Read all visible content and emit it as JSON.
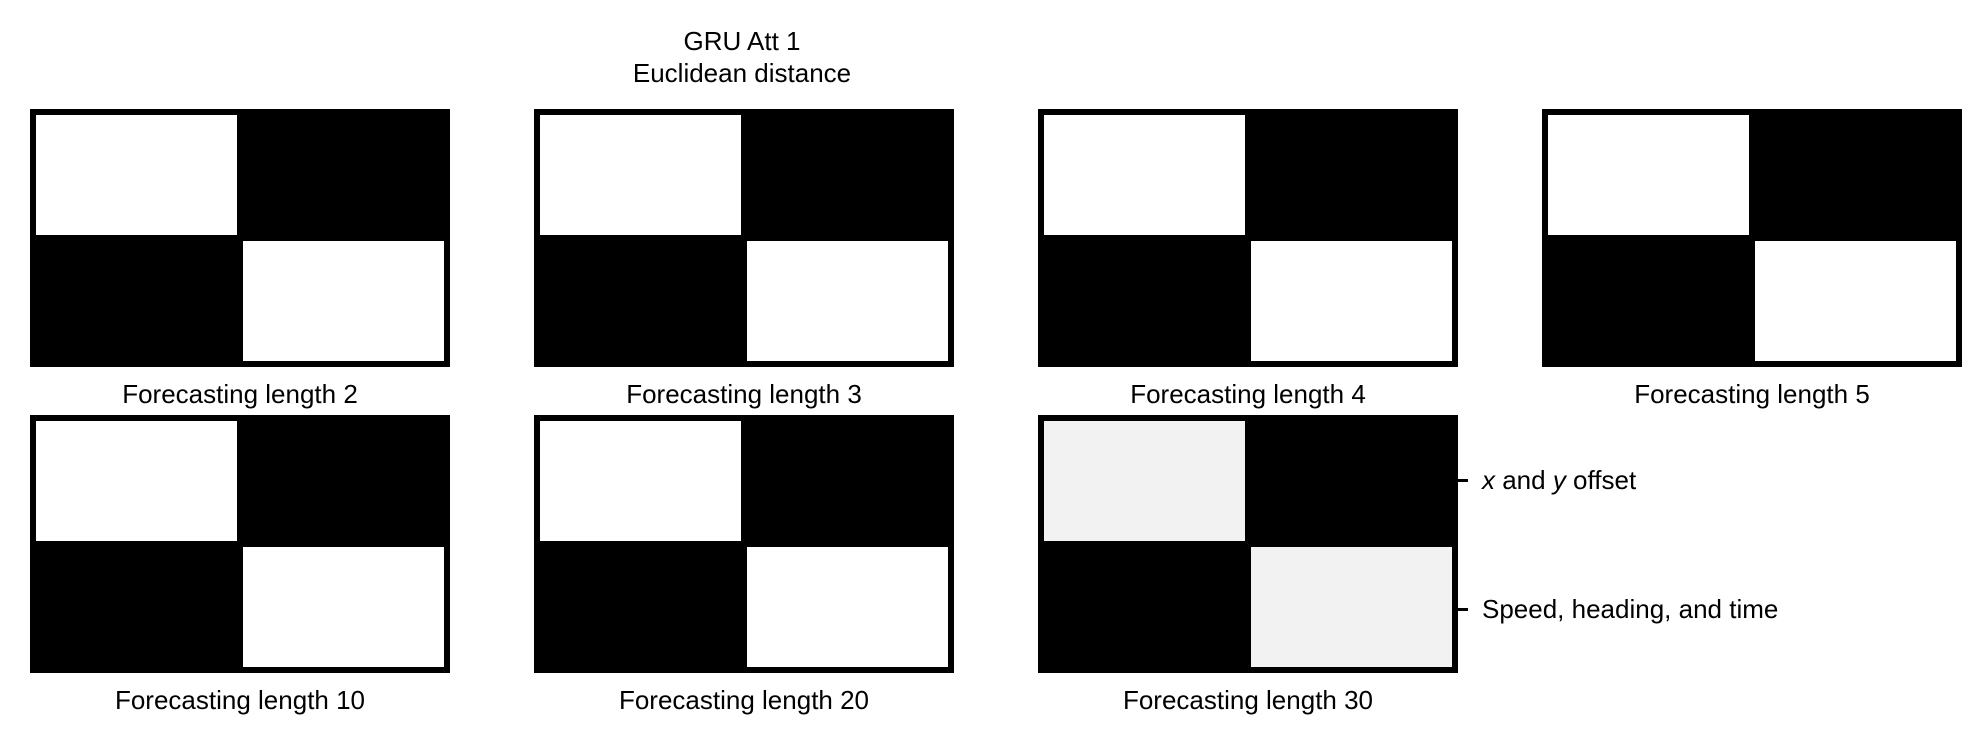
{
  "chart_data": {
    "type": "heatmap",
    "title_lines": [
      "GRU Att 1",
      "Euclidean distance"
    ],
    "colormap": "grayscale (white = high, black = low)",
    "row_labels": [
      "x and y offset",
      "Speed, heading, and time"
    ],
    "panels": [
      {
        "label": "Forecasting length 2",
        "values": [
          [
            1.0,
            0.0
          ],
          [
            0.0,
            1.0
          ]
        ]
      },
      {
        "label": "Forecasting length 3",
        "values": [
          [
            1.0,
            0.0
          ],
          [
            0.0,
            1.0
          ]
        ]
      },
      {
        "label": "Forecasting length 4",
        "values": [
          [
            1.0,
            0.0
          ],
          [
            0.0,
            1.0
          ]
        ]
      },
      {
        "label": "Forecasting length 5",
        "values": [
          [
            1.0,
            0.0
          ],
          [
            0.0,
            1.0
          ]
        ]
      },
      {
        "label": "Forecasting length 10",
        "values": [
          [
            1.0,
            0.0
          ],
          [
            0.0,
            1.0
          ]
        ]
      },
      {
        "label": "Forecasting length 20",
        "values": [
          [
            1.0,
            0.0
          ],
          [
            0.0,
            1.0
          ]
        ]
      },
      {
        "label": "Forecasting length 30",
        "values": [
          [
            0.95,
            0.0
          ],
          [
            0.0,
            0.95
          ]
        ]
      }
    ]
  }
}
